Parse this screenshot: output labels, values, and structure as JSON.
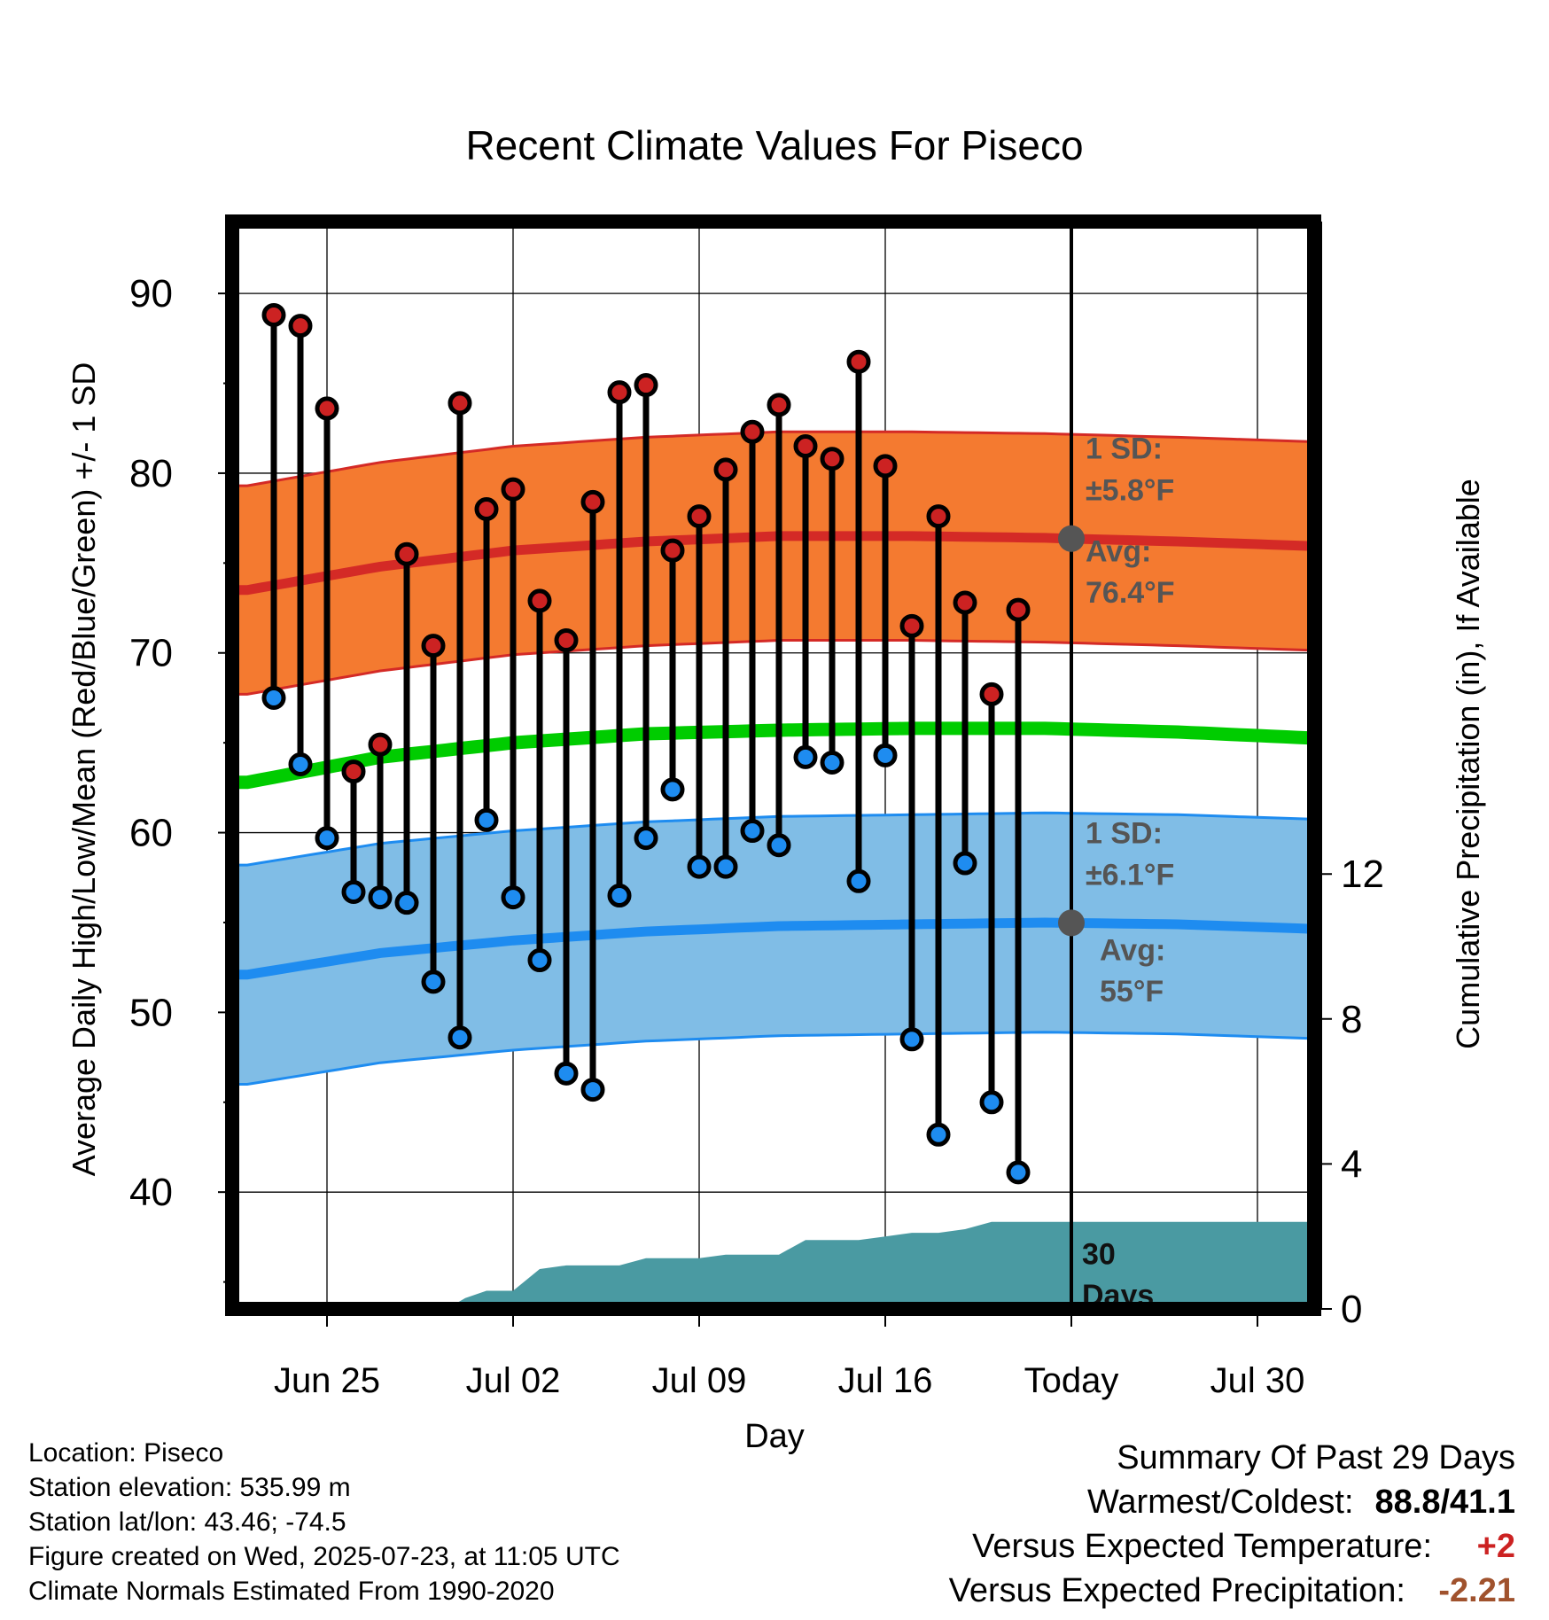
{
  "chart_data": {
    "type": "line",
    "title": "Recent Climate Values For Piseco",
    "xlabel": "Day",
    "ylabel_left": "Average Daily High/Low/Mean (Red/Blue/Green) +/- 1 SD",
    "ylabel_right": "Cumulative Precipitation (in), If Available",
    "ylim_left": [
      33.5,
      94
    ],
    "ylim_right": [
      0,
      30
    ],
    "y_ticks_left": [
      40,
      50,
      60,
      70,
      80,
      90
    ],
    "y_ticks_right": [
      0,
      4,
      8,
      12
    ],
    "x_ticks": [
      {
        "label": "Jun 25",
        "day": 3
      },
      {
        "label": "Jul 02",
        "day": 10
      },
      {
        "label": "Jul 09",
        "day": 17
      },
      {
        "label": "Jul 16",
        "day": 24
      },
      {
        "label": "Today",
        "day": 31
      },
      {
        "label": "Jul 30",
        "day": 38
      }
    ],
    "today_day": 31,
    "daily_highs": [
      88.8,
      88.2,
      83.6,
      63.4,
      64.9,
      75.5,
      70.4,
      83.9,
      78.0,
      79.1,
      72.9,
      70.7,
      78.4,
      84.5,
      84.9,
      75.7,
      77.6,
      80.2,
      82.3,
      83.8,
      81.5,
      80.8,
      86.2,
      80.4,
      71.5,
      77.6,
      72.8,
      67.7,
      72.4
    ],
    "daily_lows": [
      67.5,
      63.8,
      59.7,
      56.7,
      56.4,
      56.1,
      51.7,
      48.6,
      60.7,
      56.4,
      52.9,
      46.6,
      45.7,
      56.5,
      59.7,
      62.4,
      58.1,
      58.1,
      60.1,
      59.3,
      64.2,
      63.9,
      57.3,
      64.3,
      48.5,
      43.2,
      58.3,
      45.0,
      41.1
    ],
    "normal_high": {
      "days": [
        0,
        5,
        10,
        15,
        20,
        25,
        30,
        35,
        41
      ],
      "values": [
        73.5,
        74.8,
        75.7,
        76.2,
        76.5,
        76.5,
        76.4,
        76.2,
        75.9
      ]
    },
    "normal_high_sd": 5.8,
    "normal_mean": {
      "days": [
        0,
        5,
        10,
        15,
        20,
        25,
        30,
        35,
        41
      ],
      "values": [
        62.8,
        64.2,
        65.0,
        65.5,
        65.7,
        65.8,
        65.8,
        65.6,
        65.2
      ]
    },
    "normal_low": {
      "days": [
        0,
        5,
        10,
        15,
        20,
        25,
        30,
        35,
        41
      ],
      "values": [
        52.1,
        53.3,
        54.0,
        54.5,
        54.8,
        54.9,
        55.0,
        54.9,
        54.6
      ]
    },
    "normal_low_sd": 6.1,
    "cumulative_precip": {
      "days": [
        7.5,
        8.2,
        9,
        10,
        11,
        12,
        14,
        15,
        17,
        18,
        20,
        21,
        22,
        23,
        24,
        25,
        26,
        27,
        28,
        29,
        30,
        31,
        32,
        41
      ],
      "values": [
        0,
        0.3,
        0.5,
        0.5,
        1.1,
        1.2,
        1.2,
        1.4,
        1.4,
        1.5,
        1.5,
        1.9,
        1.9,
        1.9,
        2.0,
        2.1,
        2.1,
        2.2,
        2.4,
        2.4,
        2.4,
        2.4,
        2.4,
        2.4
      ]
    },
    "annotations": {
      "high_sd_label": "1 SD:",
      "high_sd_value": "±5.8°F",
      "high_avg_label": "Avg:",
      "high_avg_value": "76.4°F",
      "low_sd_label": "1 SD:",
      "low_sd_value": "±6.1°F",
      "low_avg_label": "Avg:",
      "low_avg_value": "55°F",
      "days_label_1": "30",
      "days_label_2": "Days"
    },
    "colors": {
      "high_band": "#f47a30",
      "high_band_edge": "#d42a26",
      "high_mean_line": "#d42a26",
      "low_band": "#80bde6",
      "low_band_edge": "#1e8cf0",
      "low_mean_line": "#1e8cf0",
      "mean_line": "#00cc00",
      "precip": "#4a9aa2",
      "high_dot": "#cc2222",
      "low_dot": "#1e8cf0",
      "annotation_text": "#555555",
      "today_marker": "#555555"
    }
  },
  "footer": {
    "location": "Location: Piseco",
    "elevation": "Station elevation: 535.99 m",
    "latlon": "Station lat/lon: 43.46; -74.5",
    "created": "Figure created on Wed, 2025-07-23, at 11:05 UTC",
    "normals": "Climate Normals Estimated From 1990-2020"
  },
  "summary": {
    "title": "Summary Of Past 29 Days",
    "warm_cold_label": "Warmest/Coldest:",
    "warm_cold_value": "88.8/41.1",
    "temp_label": "Versus Expected Temperature:",
    "temp_value": "+2",
    "temp_color": "#cc2222",
    "precip_label": "Versus Expected Precipitation:",
    "precip_value": "-2.21",
    "precip_color": "#a0522d"
  }
}
